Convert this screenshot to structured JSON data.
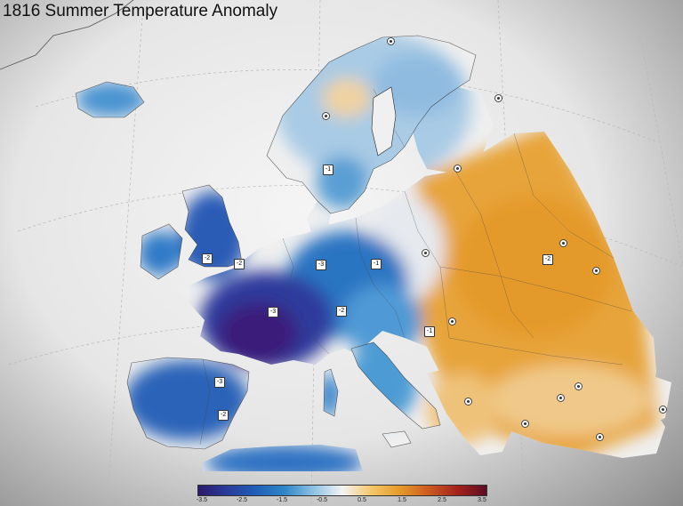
{
  "title": "1816 Summer Temperature Anomaly",
  "colorbar": {
    "ticks": [
      "-3.5",
      "-2.5",
      "-1.5",
      "-0.5",
      "0.5",
      "1.5",
      "2.5",
      "3.5"
    ],
    "colors": [
      "#2b1a6b",
      "#2a3b9a",
      "#1f5fb8",
      "#2f86c8",
      "#8ec2e3",
      "#f4f4f4",
      "#f5c76a",
      "#e49a2a",
      "#cc5a1e",
      "#a3221d",
      "#5c0d22"
    ]
  },
  "station_labels": [
    "-1",
    "-2",
    "-2",
    "-1",
    "-3",
    "-3",
    "-2",
    "-1",
    "-3",
    "-2",
    "-2"
  ],
  "colors": {
    "cold_extreme": "#3a1f7a",
    "cold": "#1f5fb8",
    "cool": "#7fb6dc",
    "neutral": "#efefef",
    "warm": "#e9a63a",
    "sea": "#f2f2f2"
  }
}
